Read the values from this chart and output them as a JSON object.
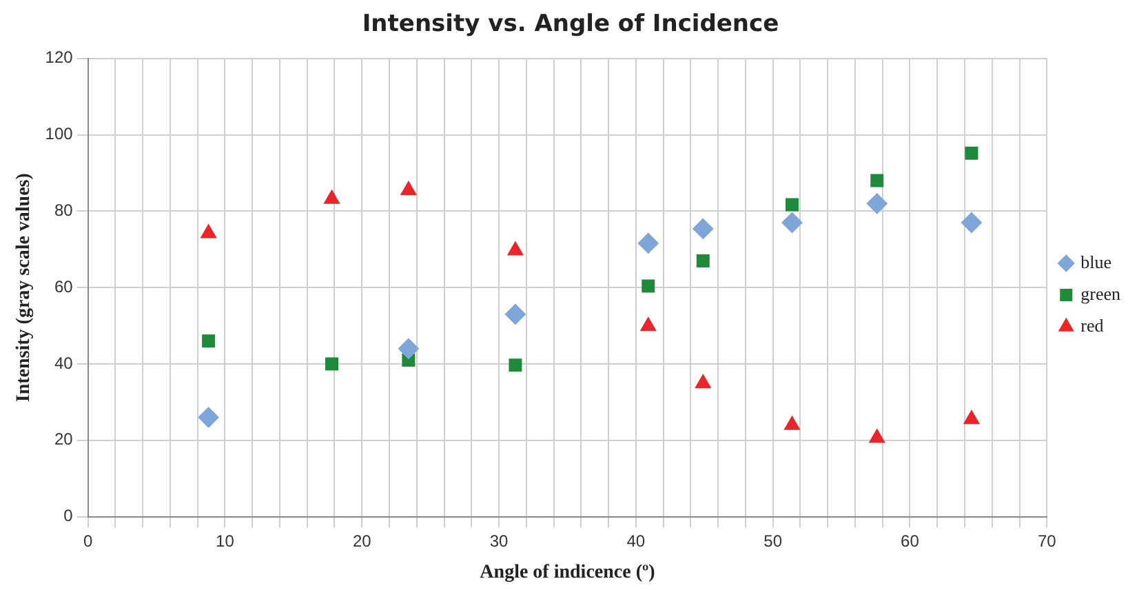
{
  "chart_data": {
    "type": "scatter",
    "title": "Intensity vs. Angle of Incidence",
    "xlabel": "Angle of indicence (º)",
    "ylabel": "Intensity (gray scale values)",
    "xlim": [
      0,
      70
    ],
    "xticks": [
      0,
      {
        "value": 2,
        "label": null
      },
      {
        "value": 4,
        "label": null
      },
      {
        "value": 6,
        "label": null
      },
      {
        "value": 8,
        "label": null
      },
      10,
      {
        "value": 12,
        "label": null
      },
      {
        "value": 14,
        "label": null
      },
      {
        "value": 16,
        "label": null
      },
      {
        "value": 18,
        "label": null
      },
      20,
      {
        "value": 22,
        "label": null
      },
      {
        "value": 24,
        "label": null
      },
      {
        "value": 26,
        "label": null
      },
      {
        "value": 28,
        "label": null
      },
      30,
      {
        "value": 32,
        "label": null
      },
      {
        "value": 34,
        "label": null
      },
      {
        "value": 36,
        "label": null
      },
      {
        "value": 38,
        "label": null
      },
      40,
      {
        "value": 42,
        "label": null
      },
      {
        "value": 44,
        "label": null
      },
      {
        "value": 46,
        "label": null
      },
      {
        "value": 48,
        "label": null
      },
      50,
      {
        "value": 52,
        "label": null
      },
      {
        "value": 54,
        "label": null
      },
      {
        "value": 56,
        "label": null
      },
      {
        "value": 58,
        "label": null
      },
      60,
      {
        "value": 62,
        "label": null
      },
      {
        "value": 64,
        "label": null
      },
      {
        "value": 66,
        "label": null
      },
      {
        "value": 68,
        "label": null
      },
      70
    ],
    "ylim": [
      0,
      120
    ],
    "yticks": [
      0,
      20,
      40,
      60,
      80,
      100,
      120
    ],
    "grid": true,
    "legend": "right",
    "x": [
      8.8,
      17.8,
      23.4,
      31.2,
      40.9,
      44.9,
      51.4,
      57.6,
      64.5
    ],
    "series": [
      {
        "name": "blue",
        "color": "#7fa6d8",
        "marker": "diamond",
        "values": [
          26,
          null,
          44,
          53,
          71.6,
          75.4,
          77,
          82,
          77
        ]
      },
      {
        "name": "green",
        "color": "#1e8a3a",
        "marker": "square",
        "values": [
          46,
          40,
          41,
          39.7,
          60.4,
          67,
          81.7,
          88,
          95.2
        ]
      },
      {
        "name": "red",
        "color": "#e8262a",
        "marker": "triangle",
        "values": [
          74.2,
          83.2,
          85.5,
          69.7,
          49.9,
          34.9,
          24,
          20.6,
          25.5
        ]
      }
    ]
  }
}
